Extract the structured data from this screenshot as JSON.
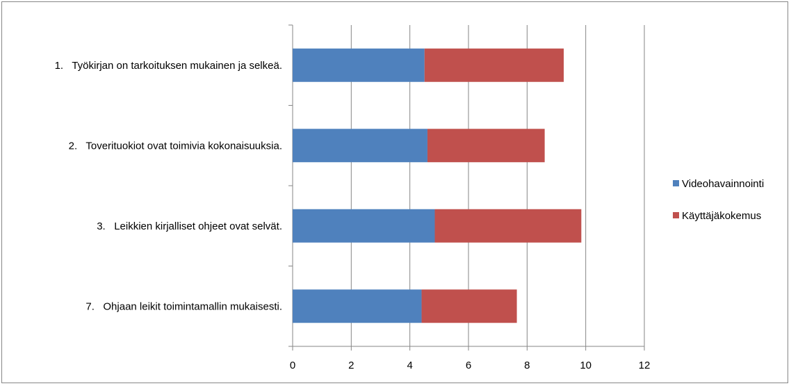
{
  "chart_data": {
    "type": "bar",
    "orientation": "horizontal",
    "stacked": true,
    "categories": [
      "1.   Työkirjan on tarkoituksen mukainen ja selkeä.",
      "2.   Toverituokiot ovat toimivia kokonaisuuksia.",
      "3.   Leikkien kirjalliset ohjeet ovat selvät.",
      "7.   Ohjaan leikit toimintamallin mukaisesti."
    ],
    "series": [
      {
        "name": "Videohavainnointi",
        "color": "#4F81BD",
        "values": [
          4.5,
          4.6,
          4.85,
          4.4
        ]
      },
      {
        "name": "Käyttäjäkokemus",
        "color": "#C0504D",
        "values": [
          4.75,
          4.0,
          5.0,
          3.25
        ]
      }
    ],
    "xlim": [
      0,
      12
    ],
    "xticks": [
      "0",
      "2",
      "4",
      "6",
      "8",
      "10",
      "12"
    ],
    "grid": true,
    "legend": "right"
  }
}
